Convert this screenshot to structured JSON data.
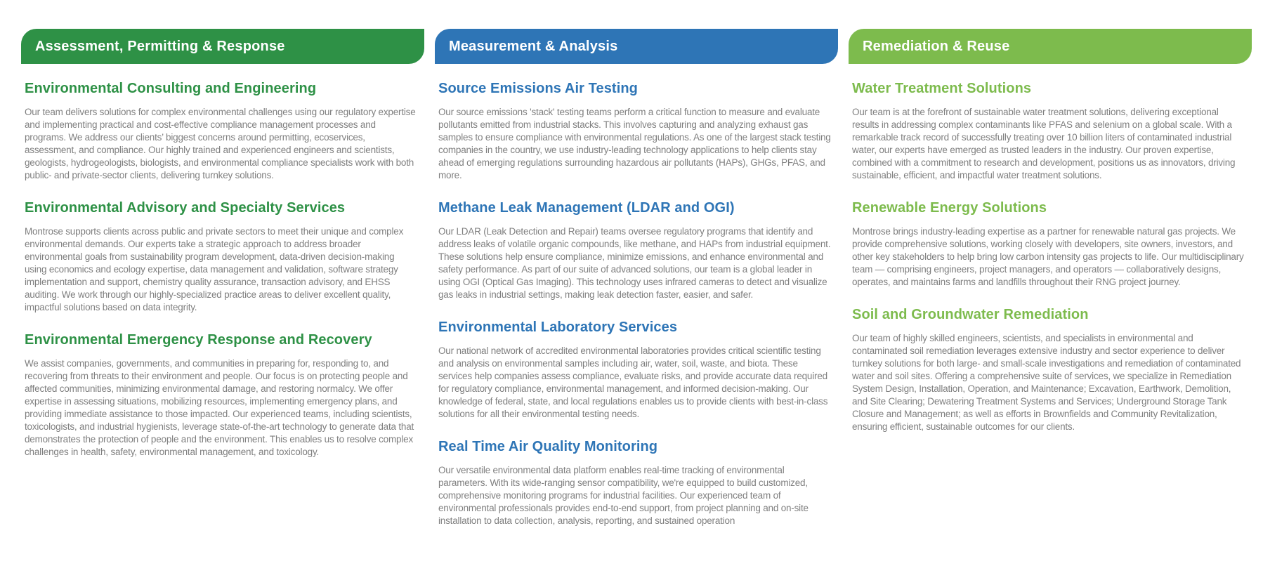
{
  "page": {
    "background": "#FFFFFF",
    "body_text_color": "#7F7F7F",
    "banner_text_color": "#FFFFFF"
  },
  "columns": [
    {
      "id": "assessment-permitting-response",
      "header": "Assessment, Permitting & Response",
      "accent": "#2E9146",
      "sections": [
        {
          "heading": "Environmental Consulting and Engineering",
          "body": "Our team delivers solutions for complex environmental challenges using our regulatory expertise and implementing practical and cost-effective compliance management processes and programs. We address our clients’ biggest concerns around permitting, ecoservices, assessment, and compliance.  Our highly trained and experienced engineers and scientists, geologists, hydrogeologists, biologists, and environmental compliance specialists work with both public- and private-sector clients, delivering turnkey solutions."
        },
        {
          "heading": "Environmental Advisory and Specialty Services",
          "body": "Montrose supports clients across public and private sectors to meet their unique and complex environmental demands. Our experts take a strategic approach to address broader environmental goals from sustainability program development, data-driven decision-making using economics and ecology expertise, data management and validation, software strategy implementation and support, chemistry quality assurance, transaction advisory, and EHSS auditing. We work through our highly-specialized practice areas to deliver excellent quality, impactful solutions based on data integrity."
        },
        {
          "heading": "Environmental Emergency Response and Recovery",
          "body": "We assist companies, governments, and communities in preparing for, responding to, and recovering from threats to their environment and people.  Our focus is on protecting people and affected communities, minimizing environmental damage, and restoring normalcy. We offer expertise in assessing situations, mobilizing resources, implementing emergency plans, and providing immediate assistance to those impacted. Our experienced teams, including scientists, toxicologists, and industrial hygienists, leverage state-of-the-art technology to generate data that demonstrates the protection of people and the environment. This enables us to resolve complex challenges in health, safety, environmental management, and toxicology."
        }
      ]
    },
    {
      "id": "measurement-analysis",
      "header": "Measurement & Analysis",
      "accent": "#2E75B6",
      "sections": [
        {
          "heading": "Source Emissions Air Testing",
          "body": "Our source emissions 'stack' testing teams perform a critical function to measure and evaluate pollutants emitted from industrial stacks. This involves capturing and analyzing exhaust gas samples to ensure compliance with environmental regulations. As one of the largest stack testing companies in the country, we use industry-leading technology applications to help clients stay ahead of emerging regulations surrounding hazardous air pollutants (HAPs), GHGs, PFAS, and more."
        },
        {
          "heading": "Methane Leak Management (LDAR and OGI)",
          "body": "Our LDAR (Leak Detection and Repair) teams oversee regulatory programs that identify and address leaks of volatile organic compounds, like methane, and HAPs from industrial equipment. These solutions help ensure compliance, minimize emissions, and enhance environmental and safety performance. As part of our suite of advanced solutions, our team is a global leader in using OGI (Optical Gas Imaging). This technology uses infrared cameras to detect and visualize gas leaks in industrial settings, making leak detection faster, easier, and safer."
        },
        {
          "heading": "Environmental Laboratory Services",
          "body": "Our national network of accredited environmental laboratories provides critical scientific testing and analysis on environmental samples including air, water, soil, waste, and biota. These services help companies assess compliance, evaluate risks, and provide accurate data required for regulatory compliance, environmental management, and informed decision-making. Our knowledge of federal, state, and local regulations enables us to provide clients with best-in-class solutions for all their environmental testing needs."
        },
        {
          "heading": "Real Time Air Quality Monitoring",
          "body": "Our versatile environmental data platform enables real-time tracking of environmental parameters. With its wide-ranging sensor compatibility, we're equipped to build customized, comprehensive monitoring programs for industrial facilities. Our experienced team of environmental professionals provides end-to-end support, from project planning and on-site installation to data collection, analysis, reporting, and sustained operation"
        }
      ]
    },
    {
      "id": "remediation-reuse",
      "header": "Remediation & Reuse",
      "accent": "#7DBB4D",
      "sections": [
        {
          "heading": "Water Treatment Solutions",
          "body": "Our team is at the forefront of sustainable water treatment solutions, delivering exceptional results in addressing complex contaminants like PFAS and selenium on a global scale. With a remarkable track record of successfully treating over 10 billion liters of contaminated industrial water, our experts have emerged as trusted leaders in the industry. Our proven expertise, combined with a commitment to research and development, positions us as innovators, driving sustainable, efficient, and impactful water treatment solutions."
        },
        {
          "heading": "Renewable Energy Solutions",
          "body": "Montrose brings industry-leading expertise as a partner for renewable natural gas projects. We provide comprehensive solutions, working closely with developers, site owners, investors, and other key stakeholders to help bring low carbon intensity gas projects to life. Our multidisciplinary team — comprising engineers, project managers, and operators — collaboratively designs, operates, and maintains farms and landfills throughout their RNG project journey."
        },
        {
          "heading": "Soil and Groundwater Remediation",
          "body": "Our team of highly skilled engineers, scientists, and specialists in environmental and contaminated soil remediation leverages extensive industry and sector experience to deliver turnkey solutions for both large- and small-scale investigations and remediation of contaminated water and soil sites. Offering a comprehensive suite of services, we specialize in Remediation System Design, Installation, Operation, and Maintenance; Excavation, Earthwork, Demolition, and Site Clearing; Dewatering Treatment Systems and Services; Underground Storage Tank Closure and Management; as well as efforts in Brownfields and Community Revitalization, ensuring efficient, sustainable outcomes for our clients."
        }
      ]
    }
  ]
}
